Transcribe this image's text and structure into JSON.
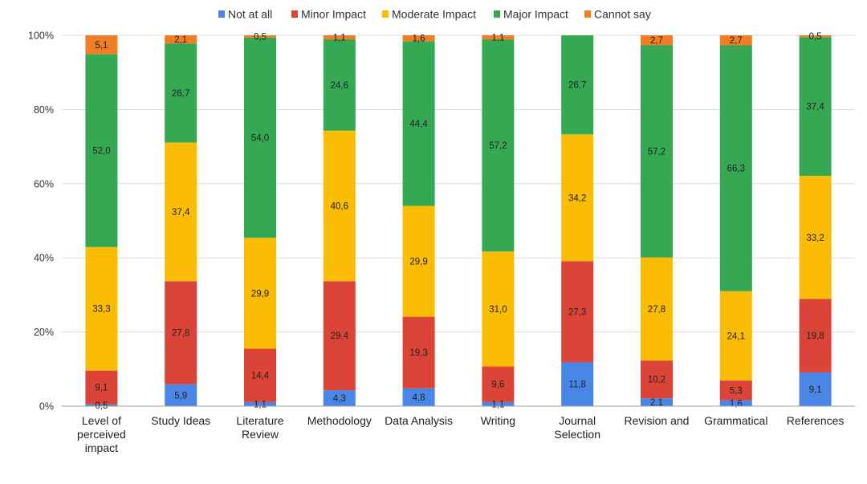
{
  "chart_data": {
    "type": "bar",
    "stacked": true,
    "normalized_percent": true,
    "title": "",
    "xlabel": "",
    "ylabel": "",
    "ylim": [
      0,
      100
    ],
    "yticks": [
      "0%",
      "20%",
      "40%",
      "60%",
      "80%",
      "100%"
    ],
    "legend_position": "top",
    "grid": true,
    "categories": [
      [
        "Level of",
        "perceived",
        "impact"
      ],
      [
        "Study Ideas"
      ],
      [
        "Literature",
        "Review"
      ],
      [
        "Methodology"
      ],
      [
        "Data Analysis"
      ],
      [
        "Writing"
      ],
      [
        "Journal",
        "Selection"
      ],
      [
        "Revision and"
      ],
      [
        "Grammatical"
      ],
      [
        "References"
      ]
    ],
    "series": [
      {
        "name": "Not at all",
        "color": "#4a86e8",
        "values": [
          0.5,
          5.9,
          1.1,
          4.3,
          4.8,
          1.1,
          11.8,
          2.1,
          1.6,
          9.1
        ],
        "labels": [
          "0,5",
          "5,9",
          "1,1",
          "4,3",
          "4,8",
          "1,1",
          "11,8",
          "2,1",
          "1,6",
          "9,1"
        ]
      },
      {
        "name": "Minor Impact",
        "color": "#db4437",
        "values": [
          9.1,
          27.8,
          14.4,
          29.4,
          19.3,
          9.6,
          27.3,
          10.2,
          5.3,
          19.8
        ],
        "labels": [
          "9,1",
          "27,8",
          "14,4",
          "29,4",
          "19,3",
          "9,6",
          "27,3",
          "10,2",
          "5,3",
          "19,8"
        ]
      },
      {
        "name": "Moderate Impact",
        "color": "#fbbc04",
        "values": [
          33.3,
          37.4,
          29.9,
          40.6,
          29.9,
          31.0,
          34.2,
          27.8,
          24.1,
          33.2
        ],
        "labels": [
          "33,3",
          "37,4",
          "29,9",
          "40,6",
          "29,9",
          "31,0",
          "34,2",
          "27,8",
          "24,1",
          "33,2"
        ]
      },
      {
        "name": "Major Impact",
        "color": "#34a853",
        "values": [
          52.0,
          26.7,
          54.0,
          24.6,
          44.4,
          57.2,
          26.7,
          57.2,
          66.3,
          37.4
        ],
        "labels": [
          "52,0",
          "26,7",
          "54,0",
          "24,6",
          "44,4",
          "57,2",
          "26,7",
          "57,2",
          "66,3",
          "37,4"
        ]
      },
      {
        "name": "Cannot say",
        "color": "#f07e26",
        "values": [
          5.1,
          2.1,
          0.5,
          1.1,
          1.6,
          1.1,
          0.0,
          2.7,
          2.7,
          0.5
        ],
        "labels": [
          "5,1",
          "2,1",
          "0,5",
          "1,1",
          "1,6",
          "1,1",
          "",
          "2,7",
          "2,7",
          "0,5"
        ]
      }
    ]
  }
}
